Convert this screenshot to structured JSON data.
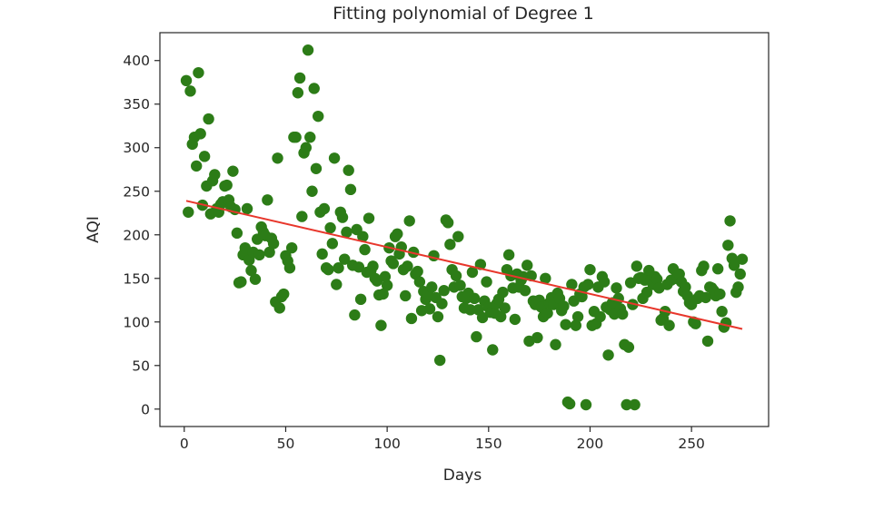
{
  "chart_data": {
    "type": "scatter",
    "title": "Fitting polynomial of Degree 1",
    "xlabel": "Days",
    "ylabel": "AQI",
    "xlim": [
      -12,
      288
    ],
    "ylim": [
      -20,
      432
    ],
    "xticks": [
      0,
      50,
      100,
      150,
      200,
      250
    ],
    "yticks": [
      0,
      50,
      100,
      150,
      200,
      250,
      300,
      350,
      400
    ],
    "grid": false,
    "legend": "none",
    "colors": {
      "points": "#2c7c17",
      "fit_line": "#e8372c"
    },
    "series": [
      {
        "kind": "scatter",
        "points": [
          [
            1,
            377
          ],
          [
            2,
            226
          ],
          [
            3,
            365
          ],
          [
            4,
            304
          ],
          [
            5,
            312
          ],
          [
            6,
            279
          ],
          [
            7,
            386
          ],
          [
            8,
            316
          ],
          [
            9,
            234
          ],
          [
            10,
            290
          ],
          [
            11,
            256
          ],
          [
            12,
            333
          ],
          [
            13,
            224
          ],
          [
            14,
            262
          ],
          [
            15,
            269
          ],
          [
            16,
            230
          ],
          [
            17,
            226
          ],
          [
            18,
            235
          ],
          [
            19,
            238
          ],
          [
            20,
            256
          ],
          [
            21,
            257
          ],
          [
            22,
            240
          ],
          [
            23,
            232
          ],
          [
            24,
            273
          ],
          [
            25,
            229
          ],
          [
            26,
            202
          ],
          [
            27,
            145
          ],
          [
            28,
            146
          ],
          [
            29,
            177
          ],
          [
            30,
            185
          ],
          [
            31,
            230
          ],
          [
            32,
            171
          ],
          [
            33,
            159
          ],
          [
            34,
            180
          ],
          [
            35,
            149
          ],
          [
            36,
            195
          ],
          [
            37,
            177
          ],
          [
            38,
            209
          ],
          [
            39,
            203
          ],
          [
            40,
            199
          ],
          [
            41,
            240
          ],
          [
            42,
            180
          ],
          [
            43,
            196
          ],
          [
            44,
            190
          ],
          [
            45,
            123
          ],
          [
            46,
            288
          ],
          [
            47,
            116
          ],
          [
            48,
            129
          ],
          [
            49,
            132
          ],
          [
            50,
            176
          ],
          [
            51,
            170
          ],
          [
            52,
            162
          ],
          [
            53,
            185
          ],
          [
            54,
            312
          ],
          [
            55,
            312
          ],
          [
            56,
            363
          ],
          [
            57,
            380
          ],
          [
            58,
            221
          ],
          [
            59,
            294
          ],
          [
            60,
            300
          ],
          [
            61,
            412
          ],
          [
            62,
            312
          ],
          [
            63,
            250
          ],
          [
            64,
            368
          ],
          [
            65,
            276
          ],
          [
            66,
            336
          ],
          [
            67,
            226
          ],
          [
            68,
            178
          ],
          [
            69,
            230
          ],
          [
            70,
            162
          ],
          [
            71,
            160
          ],
          [
            72,
            208
          ],
          [
            73,
            190
          ],
          [
            74,
            288
          ],
          [
            75,
            143
          ],
          [
            76,
            162
          ],
          [
            77,
            226
          ],
          [
            78,
            220
          ],
          [
            79,
            172
          ],
          [
            80,
            203
          ],
          [
            81,
            274
          ],
          [
            82,
            252
          ],
          [
            83,
            165
          ],
          [
            84,
            108
          ],
          [
            85,
            206
          ],
          [
            86,
            163
          ],
          [
            87,
            126
          ],
          [
            88,
            198
          ],
          [
            89,
            183
          ],
          [
            90,
            157
          ],
          [
            91,
            219
          ],
          [
            92,
            159
          ],
          [
            93,
            164
          ],
          [
            94,
            150
          ],
          [
            95,
            147
          ],
          [
            96,
            131
          ],
          [
            97,
            96
          ],
          [
            98,
            132
          ],
          [
            99,
            152
          ],
          [
            100,
            142
          ],
          [
            101,
            185
          ],
          [
            102,
            170
          ],
          [
            103,
            167
          ],
          [
            104,
            198
          ],
          [
            105,
            201
          ],
          [
            106,
            178
          ],
          [
            107,
            186
          ],
          [
            108,
            160
          ],
          [
            109,
            130
          ],
          [
            110,
            164
          ],
          [
            111,
            216
          ],
          [
            112,
            104
          ],
          [
            113,
            180
          ],
          [
            114,
            155
          ],
          [
            115,
            158
          ],
          [
            116,
            146
          ],
          [
            117,
            113
          ],
          [
            118,
            135
          ],
          [
            119,
            126
          ],
          [
            120,
            133
          ],
          [
            121,
            115
          ],
          [
            122,
            140
          ],
          [
            123,
            176
          ],
          [
            124,
            128
          ],
          [
            125,
            106
          ],
          [
            126,
            56
          ],
          [
            127,
            121
          ],
          [
            128,
            136
          ],
          [
            129,
            217
          ],
          [
            130,
            214
          ],
          [
            131,
            189
          ],
          [
            132,
            160
          ],
          [
            133,
            140
          ],
          [
            134,
            153
          ],
          [
            135,
            198
          ],
          [
            136,
            142
          ],
          [
            137,
            129
          ],
          [
            138,
            116
          ],
          [
            139,
            127
          ],
          [
            140,
            133
          ],
          [
            141,
            114
          ],
          [
            142,
            157
          ],
          [
            143,
            127
          ],
          [
            144,
            83
          ],
          [
            145,
            114
          ],
          [
            146,
            166
          ],
          [
            147,
            105
          ],
          [
            148,
            124
          ],
          [
            149,
            146
          ],
          [
            150,
            117
          ],
          [
            151,
            111
          ],
          [
            152,
            68
          ],
          [
            153,
            110
          ],
          [
            154,
            121
          ],
          [
            155,
            126
          ],
          [
            156,
            106
          ],
          [
            157,
            134
          ],
          [
            158,
            116
          ],
          [
            159,
            160
          ],
          [
            160,
            177
          ],
          [
            161,
            153
          ],
          [
            162,
            139
          ],
          [
            163,
            103
          ],
          [
            164,
            155
          ],
          [
            165,
            140
          ],
          [
            166,
            148
          ],
          [
            167,
            152
          ],
          [
            168,
            136
          ],
          [
            169,
            165
          ],
          [
            170,
            78
          ],
          [
            171,
            153
          ],
          [
            172,
            124
          ],
          [
            173,
            120
          ],
          [
            174,
            82
          ],
          [
            175,
            125
          ],
          [
            176,
            117
          ],
          [
            177,
            106
          ],
          [
            178,
            150
          ],
          [
            179,
            110
          ],
          [
            180,
            122
          ],
          [
            181,
            128
          ],
          [
            182,
            120
          ],
          [
            183,
            74
          ],
          [
            184,
            133
          ],
          [
            185,
            127
          ],
          [
            186,
            113
          ],
          [
            187,
            118
          ],
          [
            188,
            97
          ],
          [
            189,
            8
          ],
          [
            190,
            6
          ],
          [
            191,
            143
          ],
          [
            192,
            124
          ],
          [
            193,
            96
          ],
          [
            194,
            106
          ],
          [
            195,
            132
          ],
          [
            196,
            129
          ],
          [
            197,
            140
          ],
          [
            198,
            5
          ],
          [
            199,
            143
          ],
          [
            200,
            160
          ],
          [
            201,
            96
          ],
          [
            202,
            112
          ],
          [
            203,
            98
          ],
          [
            204,
            140
          ],
          [
            205,
            106
          ],
          [
            206,
            152
          ],
          [
            207,
            146
          ],
          [
            208,
            117
          ],
          [
            209,
            62
          ],
          [
            210,
            114
          ],
          [
            211,
            122
          ],
          [
            212,
            109
          ],
          [
            213,
            139
          ],
          [
            214,
            127
          ],
          [
            215,
            115
          ],
          [
            216,
            109
          ],
          [
            217,
            74
          ],
          [
            218,
            5
          ],
          [
            219,
            71
          ],
          [
            220,
            145
          ],
          [
            221,
            120
          ],
          [
            222,
            5
          ],
          [
            223,
            164
          ],
          [
            224,
            150
          ],
          [
            225,
            151
          ],
          [
            226,
            127
          ],
          [
            227,
            148
          ],
          [
            228,
            134
          ],
          [
            229,
            159
          ],
          [
            230,
            148
          ],
          [
            231,
            143
          ],
          [
            232,
            152
          ],
          [
            233,
            149
          ],
          [
            234,
            139
          ],
          [
            235,
            102
          ],
          [
            236,
            104
          ],
          [
            237,
            112
          ],
          [
            238,
            143
          ],
          [
            239,
            96
          ],
          [
            240,
            148
          ],
          [
            241,
            161
          ],
          [
            242,
            150
          ],
          [
            243,
            152
          ],
          [
            244,
            155
          ],
          [
            245,
            146
          ],
          [
            246,
            135
          ],
          [
            247,
            140
          ],
          [
            248,
            130
          ],
          [
            249,
            122
          ],
          [
            250,
            120
          ],
          [
            251,
            100
          ],
          [
            252,
            98
          ],
          [
            253,
            127
          ],
          [
            254,
            130
          ],
          [
            255,
            159
          ],
          [
            256,
            164
          ],
          [
            257,
            128
          ],
          [
            258,
            78
          ],
          [
            259,
            140
          ],
          [
            260,
            139
          ],
          [
            261,
            136
          ],
          [
            262,
            130
          ],
          [
            263,
            161
          ],
          [
            264,
            132
          ],
          [
            265,
            112
          ],
          [
            266,
            94
          ],
          [
            267,
            99
          ],
          [
            268,
            188
          ],
          [
            269,
            216
          ],
          [
            270,
            173
          ],
          [
            271,
            165
          ],
          [
            272,
            134
          ],
          [
            273,
            140
          ],
          [
            274,
            155
          ],
          [
            275,
            172
          ]
        ]
      },
      {
        "kind": "line",
        "points": [
          [
            1,
            239
          ],
          [
            275,
            92
          ]
        ]
      }
    ]
  }
}
